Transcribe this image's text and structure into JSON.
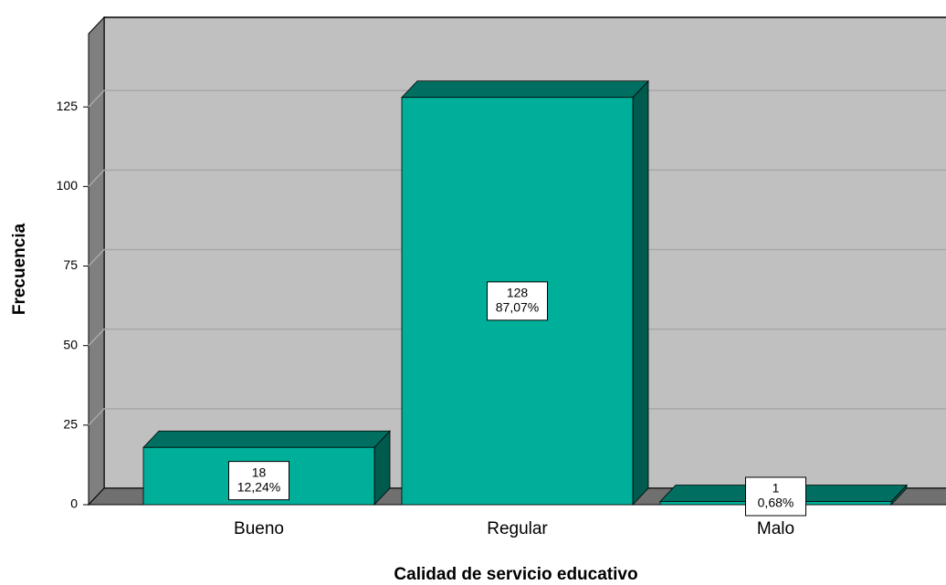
{
  "chart_data": {
    "type": "bar3d",
    "xlabel": "Calidad de servicio educativo",
    "ylabel": "Frecuencia",
    "categories": [
      "Bueno",
      "Regular",
      "Malo"
    ],
    "values": [
      18,
      128,
      1
    ],
    "percent_labels": [
      "12,24%",
      "87,07%",
      "0,68%"
    ],
    "color": "#00af9a",
    "ylim": [
      0,
      148
    ],
    "yticks": [
      0,
      25,
      50,
      75,
      100,
      125
    ],
    "grid": true
  }
}
